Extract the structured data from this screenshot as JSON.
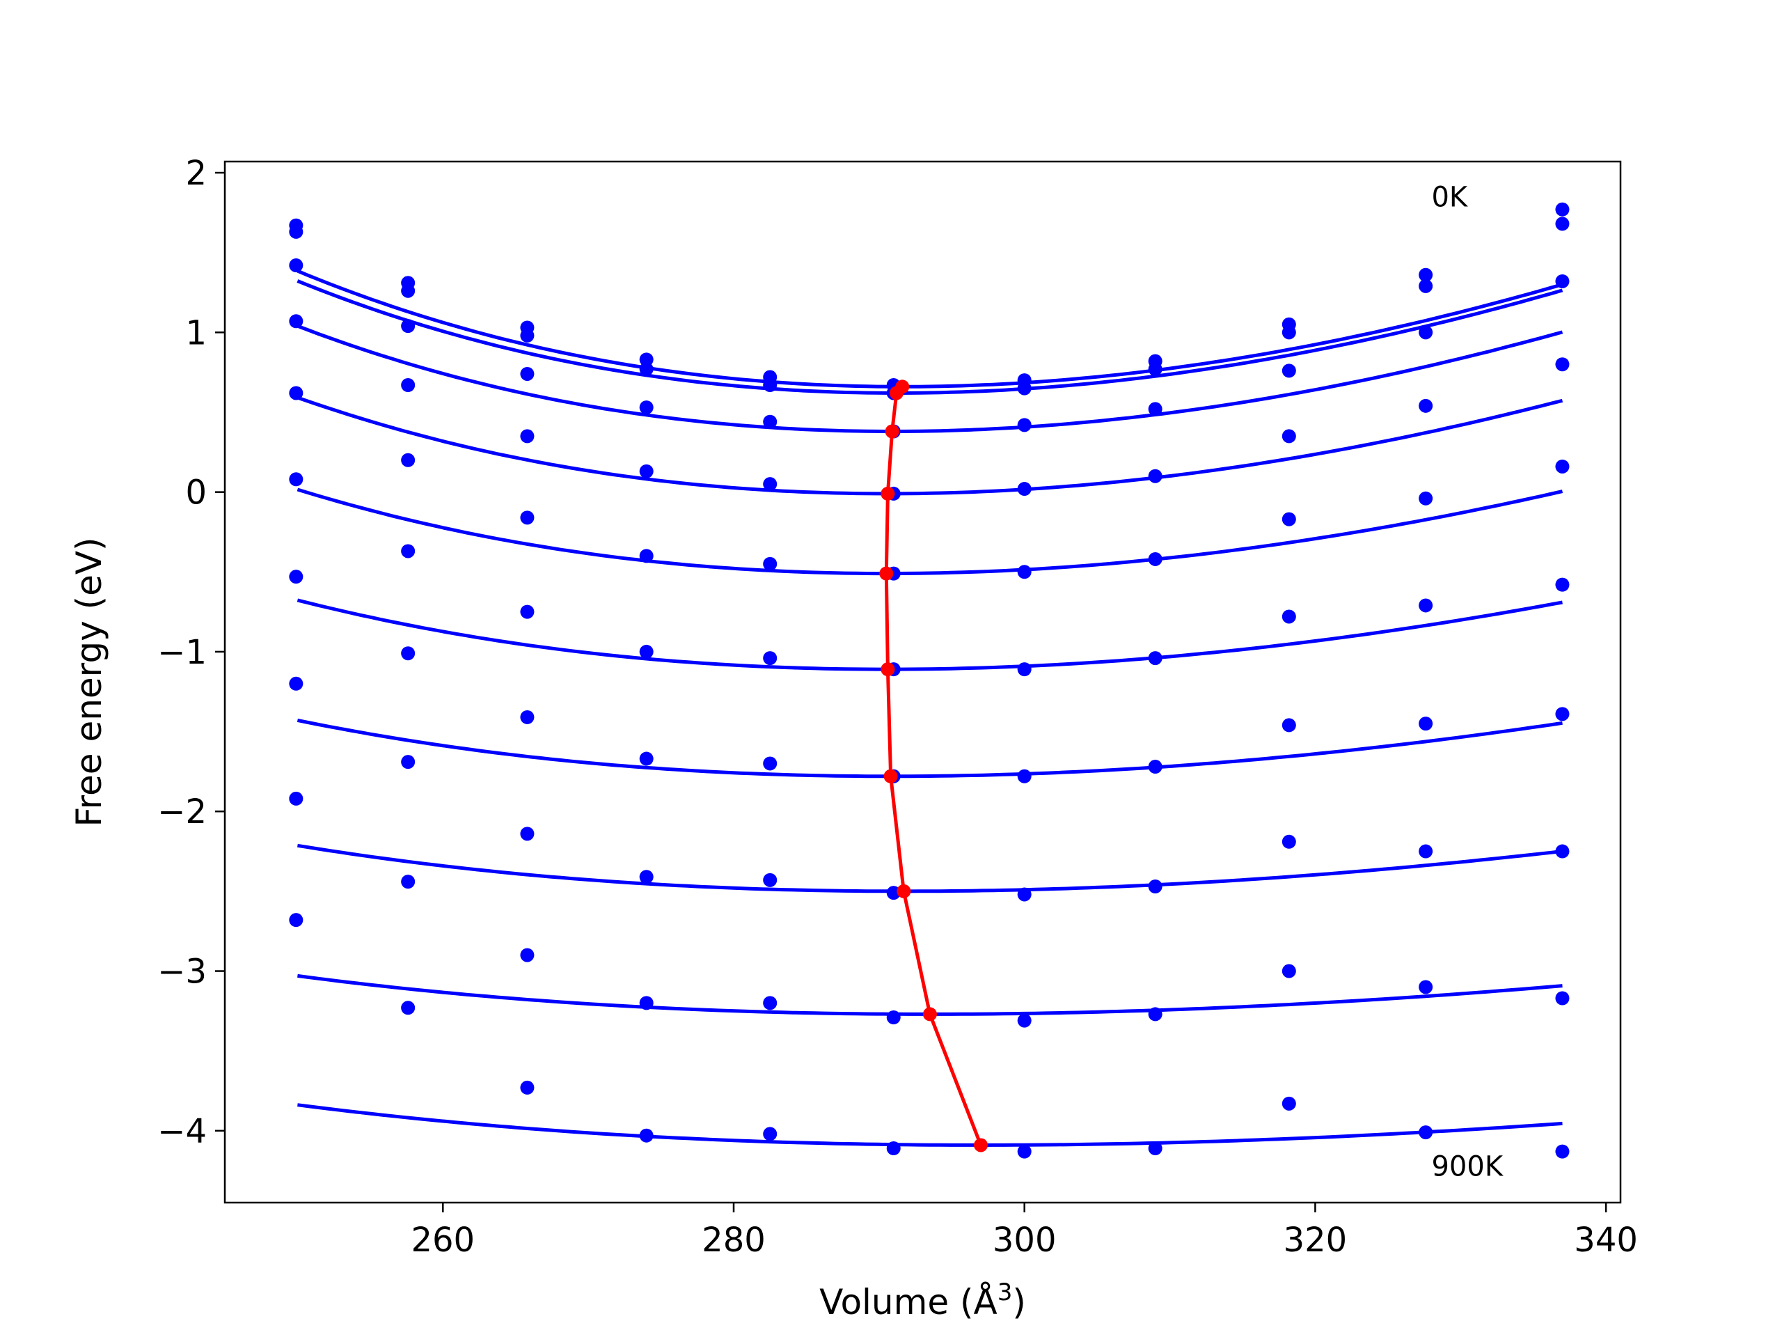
{
  "chart_data": {
    "type": "line",
    "xlabel": "Volume (Å",
    "xlabel_sup": "3",
    "xlabel_close": ")",
    "ylabel": "Free energy (eV)",
    "xlim": [
      245,
      341
    ],
    "ylim": [
      -4.45,
      2.07
    ],
    "xticks": [
      260,
      280,
      300,
      320,
      340
    ],
    "yticks": [
      -4,
      -3,
      -2,
      -1,
      0,
      1,
      2
    ],
    "xtick_labels": [
      "260",
      "280",
      "300",
      "320",
      "340"
    ],
    "ytick_labels": [
      "−4",
      "−3",
      "−2",
      "−1",
      "0",
      "1",
      "2"
    ],
    "grid": false,
    "annotations": [
      {
        "text": "0K",
        "x": 328,
        "y": 1.85
      },
      {
        "text": "900K",
        "x": 328,
        "y": -4.22
      }
    ],
    "curve_color": "#0000ff",
    "min_path_color": "#ff0000",
    "volumes": [
      249.9,
      257.6,
      265.8,
      274.0,
      282.5,
      291.0,
      300.0,
      309.0,
      318.2,
      327.6,
      337.0
    ],
    "fit_range": [
      250,
      337
    ],
    "series": [
      {
        "points": [
          1.67,
          1.31,
          1.03,
          0.83,
          0.72,
          0.67,
          0.7,
          0.82,
          1.05,
          1.36,
          1.77
        ],
        "fit": {
          "a": 0.000359,
          "v0": 291.6,
          "e0": 0.66
        }
      },
      {
        "points": [
          1.63,
          1.26,
          0.98,
          0.77,
          0.67,
          0.62,
          0.65,
          0.77,
          1.0,
          1.29,
          1.68
        ],
        "fit": {
          "a": 0.000355,
          "v0": 291.2,
          "e0": 0.62
        }
      },
      {
        "points": [
          1.42,
          1.04,
          0.74,
          0.53,
          0.44,
          0.38,
          0.42,
          0.52,
          0.76,
          1.0,
          1.32
        ],
        "fit": {
          "a": 0.000339,
          "v0": 290.9,
          "e0": 0.38
        }
      },
      {
        "points": [
          1.07,
          0.67,
          0.35,
          0.13,
          0.05,
          -0.01,
          0.02,
          0.1,
          0.35,
          0.54,
          0.8
        ],
        "fit": {
          "a": 0.000314,
          "v0": 290.6,
          "e0": -0.01
        }
      },
      {
        "points": [
          0.62,
          0.2,
          -0.16,
          -0.4,
          -0.45,
          -0.51,
          -0.5,
          -0.42,
          -0.17,
          -0.04,
          0.16
        ],
        "fit": {
          "a": 0.000276,
          "v0": 290.5,
          "e0": -0.51
        }
      },
      {
        "points": [
          0.08,
          -0.37,
          -0.75,
          -1.0,
          -1.04,
          -1.11,
          -1.11,
          -1.04,
          -0.78,
          -0.71,
          -0.58
        ],
        "fit": {
          "a": 0.000226,
          "v0": 290.6,
          "e0": -1.11
        }
      },
      {
        "points": [
          -0.53,
          -1.01,
          -1.41,
          -1.67,
          -1.7,
          -1.78,
          -1.78,
          -1.72,
          -1.46,
          -1.45,
          -1.39
        ],
        "fit": {
          "a": 0.000181,
          "v0": 290.8,
          "e0": -1.78
        }
      },
      {
        "points": [
          -1.2,
          -1.69,
          -2.14,
          -2.41,
          -2.43,
          -2.51,
          -2.52,
          -2.47,
          -2.19,
          -2.25,
          -2.25
        ],
        "fit": {
          "a": 0.000141,
          "v0": 291.7,
          "e0": -2.5
        }
      },
      {
        "points": [
          -1.92,
          -2.44,
          -2.9,
          -3.2,
          -3.2,
          -3.29,
          -3.31,
          -3.27,
          -3.0,
          -3.1,
          -3.17
        ],
        "fit": {
          "a": 0.000108,
          "v0": 293.5,
          "e0": -3.27
        }
      },
      {
        "points": [
          -2.68,
          -3.23,
          -3.73,
          -4.03,
          -4.02,
          -4.11,
          -4.13,
          -4.11,
          -3.83,
          -4.01,
          -4.13
        ],
        "fit": {
          "a": 9.6e-05,
          "v0": 297.0,
          "e0": -4.09
        }
      }
    ]
  }
}
